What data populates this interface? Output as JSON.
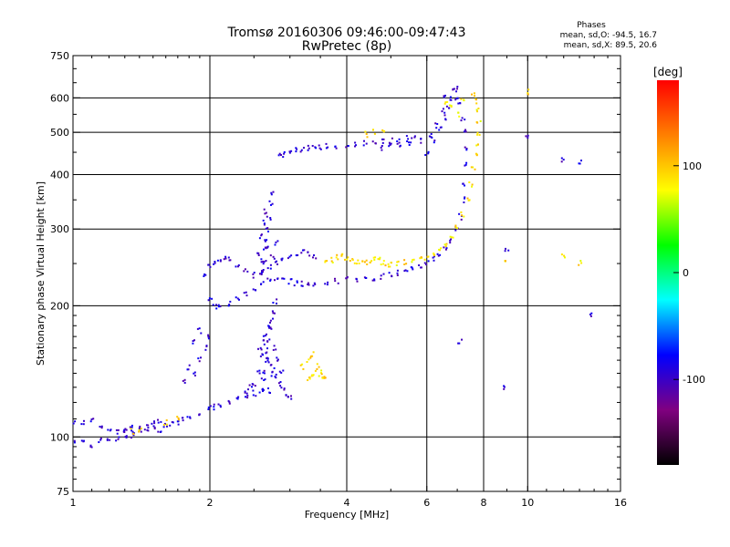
{
  "chart_data": {
    "type": "scatter",
    "title": "Tromsø 20160306 09:46:00-09:47:43",
    "subtitle": "RwPretec (8p)",
    "xlabel": "Frequency [MHz]",
    "ylabel": "Stationary phase Virtual Height [km]",
    "x_scale": "log",
    "y_scale": "log",
    "xlim": [
      1,
      16
    ],
    "ylim": [
      75,
      750
    ],
    "x_ticks": [
      1,
      2,
      4,
      6,
      8,
      10,
      16
    ],
    "y_ticks": [
      75,
      100,
      200,
      300,
      400,
      500,
      600,
      750
    ],
    "x_gridlines": [
      2,
      4,
      6,
      8,
      10
    ],
    "y_gridlines": [
      100,
      200,
      300,
      400,
      500,
      600
    ],
    "grid": true,
    "phase_info": {
      "header": "Phases",
      "line_o": "mean, sd,O:  -94.5,  16.7",
      "line_x": "mean, sd,X:   89.5,  20.6"
    },
    "colorbar": {
      "label": "[deg]",
      "range": [
        -180,
        180
      ],
      "ticks": [
        100,
        0,
        -100
      ],
      "colors": [
        "#ff0000",
        "#ff8000",
        "#ffff00",
        "#00ff00",
        "#00ffff",
        "#0000ff",
        "#800080",
        "#000000"
      ]
    },
    "series": [
      {
        "mode": "O",
        "phase_mean": -94.5,
        "phase_sd": 16.7,
        "points": [
          [
            1.0,
            108
          ],
          [
            1.05,
            108
          ],
          [
            1.1,
            109
          ],
          [
            1.15,
            106
          ],
          [
            1.2,
            104
          ],
          [
            1.25,
            103
          ],
          [
            1.3,
            104
          ],
          [
            1.35,
            106
          ],
          [
            1.4,
            105
          ],
          [
            1.45,
            106
          ],
          [
            1.5,
            107
          ],
          [
            1.55,
            108
          ],
          [
            1.6,
            106
          ],
          [
            1.65,
            107
          ],
          [
            1.7,
            108
          ],
          [
            1.75,
            110
          ],
          [
            1.8,
            111
          ],
          [
            1.9,
            114
          ],
          [
            2.0,
            117
          ],
          [
            2.05,
            117
          ],
          [
            2.1,
            118
          ],
          [
            2.2,
            121
          ],
          [
            2.3,
            123
          ],
          [
            2.4,
            124
          ],
          [
            2.5,
            126
          ],
          [
            2.6,
            127
          ],
          [
            2.7,
            128
          ],
          [
            1.0,
            97
          ],
          [
            1.05,
            97
          ],
          [
            1.1,
            96
          ],
          [
            1.15,
            98
          ],
          [
            1.2,
            98
          ],
          [
            1.25,
            99
          ],
          [
            1.3,
            100
          ],
          [
            1.35,
            101
          ],
          [
            2.6,
            128
          ],
          [
            2.62,
            135
          ],
          [
            2.64,
            142
          ],
          [
            2.66,
            150
          ],
          [
            2.68,
            158
          ],
          [
            2.7,
            167
          ],
          [
            2.72,
            176
          ],
          [
            2.74,
            185
          ],
          [
            2.76,
            195
          ],
          [
            2.78,
            205
          ],
          [
            2.6,
            155
          ],
          [
            2.65,
            170
          ],
          [
            2.7,
            180
          ],
          [
            2.55,
            140
          ],
          [
            2.5,
            132
          ],
          [
            2.75,
            145
          ],
          [
            2.8,
            138
          ],
          [
            2.85,
            132
          ],
          [
            2.9,
            128
          ],
          [
            2.95,
            125
          ],
          [
            3.0,
            124
          ],
          [
            2.45,
            130
          ],
          [
            2.4,
            126
          ],
          [
            2.58,
            160
          ],
          [
            2.62,
            165
          ],
          [
            2.68,
            150
          ],
          [
            2.72,
            140
          ],
          [
            2.78,
            160
          ],
          [
            2.82,
            150
          ],
          [
            2.88,
            142
          ],
          [
            2.0,
            205
          ],
          [
            2.05,
            200
          ],
          [
            2.1,
            198
          ],
          [
            2.2,
            202
          ],
          [
            2.3,
            208
          ],
          [
            2.4,
            214
          ],
          [
            2.5,
            220
          ],
          [
            2.6,
            225
          ],
          [
            2.7,
            228
          ],
          [
            2.8,
            232
          ],
          [
            2.9,
            230
          ],
          [
            3.0,
            228
          ],
          [
            3.1,
            226
          ],
          [
            3.2,
            225
          ],
          [
            3.3,
            224
          ],
          [
            3.4,
            224
          ],
          [
            3.6,
            226
          ],
          [
            3.8,
            228
          ],
          [
            4.0,
            230
          ],
          [
            4.2,
            230
          ],
          [
            4.4,
            230
          ],
          [
            4.6,
            232
          ],
          [
            4.8,
            234
          ],
          [
            5.0,
            236
          ],
          [
            5.2,
            238
          ],
          [
            5.4,
            241
          ],
          [
            5.6,
            244
          ],
          [
            5.8,
            247
          ],
          [
            6.0,
            251
          ],
          [
            6.2,
            256
          ],
          [
            6.4,
            262
          ],
          [
            6.6,
            270
          ],
          [
            6.8,
            282
          ],
          [
            7.0,
            300
          ],
          [
            7.1,
            320
          ],
          [
            7.2,
            350
          ],
          [
            7.25,
            380
          ],
          [
            7.3,
            420
          ],
          [
            7.3,
            460
          ],
          [
            7.25,
            500
          ],
          [
            7.2,
            540
          ],
          [
            7.1,
            580
          ],
          [
            7.0,
            600
          ],
          [
            6.95,
            630
          ],
          [
            1.95,
            235
          ],
          [
            2.0,
            245
          ],
          [
            2.05,
            250
          ],
          [
            2.1,
            255
          ],
          [
            2.15,
            258
          ],
          [
            2.2,
            255
          ],
          [
            2.3,
            248
          ],
          [
            2.4,
            240
          ],
          [
            2.5,
            235
          ],
          [
            2.6,
            238
          ],
          [
            2.7,
            245
          ],
          [
            2.8,
            250
          ],
          [
            2.9,
            255
          ],
          [
            3.0,
            258
          ],
          [
            3.1,
            262
          ],
          [
            3.2,
            265
          ],
          [
            3.3,
            262
          ],
          [
            3.4,
            258
          ],
          [
            2.6,
            240
          ],
          [
            2.62,
            255
          ],
          [
            2.64,
            270
          ],
          [
            2.66,
            285
          ],
          [
            2.68,
            300
          ],
          [
            2.7,
            320
          ],
          [
            2.72,
            345
          ],
          [
            2.74,
            360
          ],
          [
            2.58,
            290
          ],
          [
            2.62,
            310
          ],
          [
            2.66,
            330
          ],
          [
            2.7,
            270
          ],
          [
            2.75,
            260
          ],
          [
            2.8,
            280
          ],
          [
            2.56,
            265
          ],
          [
            2.64,
            250
          ],
          [
            6.0,
            450
          ],
          [
            6.2,
            480
          ],
          [
            6.4,
            510
          ],
          [
            6.6,
            540
          ],
          [
            6.7,
            570
          ],
          [
            6.8,
            600
          ],
          [
            6.9,
            620
          ],
          [
            6.6,
            600
          ],
          [
            6.5,
            560
          ],
          [
            6.3,
            520
          ],
          [
            6.1,
            490
          ],
          [
            5.8,
            480
          ],
          [
            5.5,
            470
          ],
          [
            5.2,
            465
          ],
          [
            5.0,
            463
          ],
          [
            4.8,
            462
          ],
          [
            2.85,
            440
          ],
          [
            2.9,
            445
          ],
          [
            3.0,
            450
          ],
          [
            3.1,
            455
          ],
          [
            3.2,
            458
          ],
          [
            3.3,
            460
          ],
          [
            3.4,
            462
          ],
          [
            3.5,
            463
          ],
          [
            3.6,
            464
          ],
          [
            3.8,
            465
          ],
          [
            4.0,
            468
          ],
          [
            4.2,
            470
          ],
          [
            4.4,
            472
          ],
          [
            4.6,
            474
          ],
          [
            4.8,
            476
          ],
          [
            5.0,
            478
          ],
          [
            5.2,
            480
          ],
          [
            5.4,
            484
          ],
          [
            5.6,
            488
          ],
          [
            1.85,
            140
          ],
          [
            1.9,
            150
          ],
          [
            1.95,
            160
          ],
          [
            2.0,
            170
          ],
          [
            1.9,
            175
          ],
          [
            1.85,
            165
          ],
          [
            1.8,
            145
          ],
          [
            1.75,
            135
          ],
          [
            1.3,
            103
          ],
          [
            1.35,
            102
          ],
          [
            1.4,
            104
          ],
          [
            1.45,
            103
          ],
          [
            1.5,
            105
          ],
          [
            1.55,
            104
          ],
          [
            13.0,
            430
          ],
          [
            13.8,
            190
          ],
          [
            12.0,
            430
          ],
          [
            9.0,
            270
          ],
          [
            8.9,
            130
          ],
          [
            10.0,
            490
          ],
          [
            7.1,
            165
          ]
        ]
      },
      {
        "mode": "X",
        "phase_mean": 89.5,
        "phase_sd": 20.6,
        "points": [
          [
            3.6,
            250
          ],
          [
            3.7,
            255
          ],
          [
            3.8,
            258
          ],
          [
            3.9,
            260
          ],
          [
            4.0,
            258
          ],
          [
            4.1,
            255
          ],
          [
            4.2,
            252
          ],
          [
            4.3,
            250
          ],
          [
            4.4,
            252
          ],
          [
            4.5,
            255
          ],
          [
            4.6,
            258
          ],
          [
            4.7,
            256
          ],
          [
            4.8,
            250
          ],
          [
            4.9,
            248
          ],
          [
            5.0,
            248
          ],
          [
            5.2,
            250
          ],
          [
            5.4,
            252
          ],
          [
            5.6,
            254
          ],
          [
            5.8,
            256
          ],
          [
            6.0,
            258
          ],
          [
            6.2,
            262
          ],
          [
            6.4,
            268
          ],
          [
            6.6,
            278
          ],
          [
            6.8,
            290
          ],
          [
            7.0,
            305
          ],
          [
            7.2,
            325
          ],
          [
            7.4,
            350
          ],
          [
            7.5,
            380
          ],
          [
            7.6,
            410
          ],
          [
            7.7,
            440
          ],
          [
            7.75,
            470
          ],
          [
            7.8,
            500
          ],
          [
            7.8,
            530
          ],
          [
            7.75,
            560
          ],
          [
            7.7,
            590
          ],
          [
            7.6,
            610
          ],
          [
            3.3,
            135
          ],
          [
            3.35,
            138
          ],
          [
            3.4,
            140
          ],
          [
            3.45,
            145
          ],
          [
            3.5,
            140
          ],
          [
            3.55,
            138
          ],
          [
            3.6,
            136
          ],
          [
            3.3,
            150
          ],
          [
            3.35,
            155
          ],
          [
            3.2,
            145
          ],
          [
            4.4,
            495
          ],
          [
            4.6,
            500
          ],
          [
            4.8,
            505
          ],
          [
            6.6,
            590
          ],
          [
            6.8,
            570
          ],
          [
            7.0,
            550
          ],
          [
            7.2,
            600
          ],
          [
            1.35,
            103
          ],
          [
            1.4,
            104
          ],
          [
            1.6,
            108
          ],
          [
            1.7,
            110
          ],
          [
            10.0,
            620
          ],
          [
            12.0,
            260
          ],
          [
            13.0,
            250
          ],
          [
            9.0,
            250
          ]
        ]
      }
    ]
  }
}
